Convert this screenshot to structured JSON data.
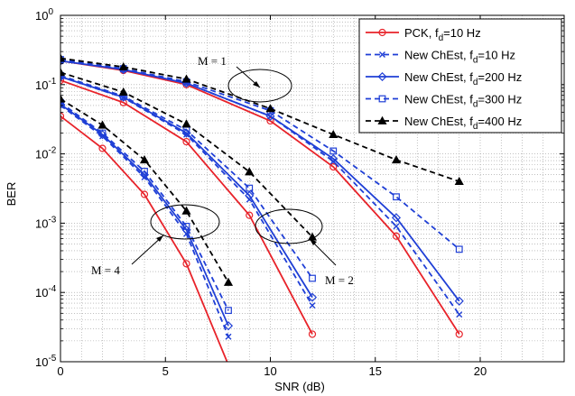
{
  "chart_data": {
    "type": "line",
    "xlabel": "SNR (dB)",
    "ylabel": "BER",
    "xlim": [
      0,
      24
    ],
    "ylim": [
      1e-05,
      1
    ],
    "yscale": "log",
    "grid": true,
    "legend_position": "top-right",
    "x_ticks": [
      0,
      5,
      10,
      15,
      20
    ],
    "x_tick_labels": [
      "0",
      "5",
      "10",
      "15",
      "20"
    ],
    "y_ticks": [
      1e-05,
      0.0001,
      0.001,
      0.01,
      0.1,
      1
    ],
    "y_tick_labels": [
      {
        "base": "10",
        "exp": "-5"
      },
      {
        "base": "10",
        "exp": "-4"
      },
      {
        "base": "10",
        "exp": "-3"
      },
      {
        "base": "10",
        "exp": "-2"
      },
      {
        "base": "10",
        "exp": "-1"
      },
      {
        "base": "10",
        "exp": "0"
      }
    ],
    "legend": [
      {
        "pre": "PCK, f",
        "sub": "d",
        "post": "=10 Hz",
        "color": "#e8232a",
        "dash": "solid",
        "marker": "circle"
      },
      {
        "pre": "New ChEst, f",
        "sub": "d",
        "post": "=10 Hz",
        "color": "#1f3fd6",
        "dash": "dashed",
        "marker": "x"
      },
      {
        "pre": "New ChEst, f",
        "sub": "d",
        "post": "=200 Hz",
        "color": "#1f3fd6",
        "dash": "solid",
        "marker": "diamond"
      },
      {
        "pre": "New ChEst, f",
        "sub": "d",
        "post": "=300 Hz",
        "color": "#1f3fd6",
        "dash": "dashed",
        "marker": "square"
      },
      {
        "pre": "New ChEst, f",
        "sub": "d",
        "post": "=400 Hz",
        "color": "#000000",
        "dash": "dashed",
        "marker": "triangle"
      }
    ],
    "groups": [
      {
        "label": "M = 1",
        "x": [
          0,
          3,
          6,
          10,
          13,
          16,
          19
        ],
        "series": [
          {
            "legend_index": 0,
            "values": [
              0.22,
              0.16,
              0.1,
              0.03,
              0.0065,
              0.00065,
              2.5e-05
            ]
          },
          {
            "legend_index": 1,
            "values": [
              0.22,
              0.165,
              0.105,
              0.035,
              0.0078,
              0.0009,
              4.8e-05
            ]
          },
          {
            "legend_index": 2,
            "values": [
              0.22,
              0.165,
              0.105,
              0.035,
              0.0085,
              0.0012,
              7.5e-05
            ]
          },
          {
            "legend_index": 3,
            "values": [
              0.23,
              0.17,
              0.11,
              0.042,
              0.011,
              0.0024,
              0.00042
            ]
          },
          {
            "legend_index": 4,
            "values": [
              0.24,
              0.18,
              0.12,
              0.045,
              0.019,
              0.0082,
              0.004
            ]
          }
        ]
      },
      {
        "label": "M = 2",
        "x": [
          0,
          3,
          6,
          9,
          12
        ],
        "series": [
          {
            "legend_index": 0,
            "values": [
              0.115,
              0.055,
              0.015,
              0.0013,
              2.5e-05
            ]
          },
          {
            "legend_index": 1,
            "values": [
              0.13,
              0.065,
              0.019,
              0.0022,
              6.5e-05
            ]
          },
          {
            "legend_index": 2,
            "values": [
              0.13,
              0.066,
              0.02,
              0.0025,
              8.5e-05
            ]
          },
          {
            "legend_index": 3,
            "values": [
              0.135,
              0.068,
              0.022,
              0.0032,
              0.00016
            ]
          },
          {
            "legend_index": 4,
            "values": [
              0.15,
              0.078,
              0.027,
              0.0055,
              0.00063
            ]
          }
        ]
      },
      {
        "label": "M = 4",
        "x": [
          0,
          2,
          4,
          6,
          8
        ],
        "series": [
          {
            "legend_index": 0,
            "values": [
              0.035,
              0.012,
              0.0026,
              0.00026,
              9e-06
            ]
          },
          {
            "legend_index": 1,
            "values": [
              0.05,
              0.018,
              0.0046,
              0.0007,
              2.3e-05
            ]
          },
          {
            "legend_index": 2,
            "values": [
              0.052,
              0.019,
              0.005,
              0.0008,
              3.3e-05
            ]
          },
          {
            "legend_index": 3,
            "values": [
              0.055,
              0.02,
              0.0056,
              0.0009,
              5.5e-05
            ]
          },
          {
            "legend_index": 4,
            "values": [
              0.062,
              0.026,
              0.0082,
              0.0015,
              0.00014
            ]
          }
        ]
      }
    ]
  }
}
